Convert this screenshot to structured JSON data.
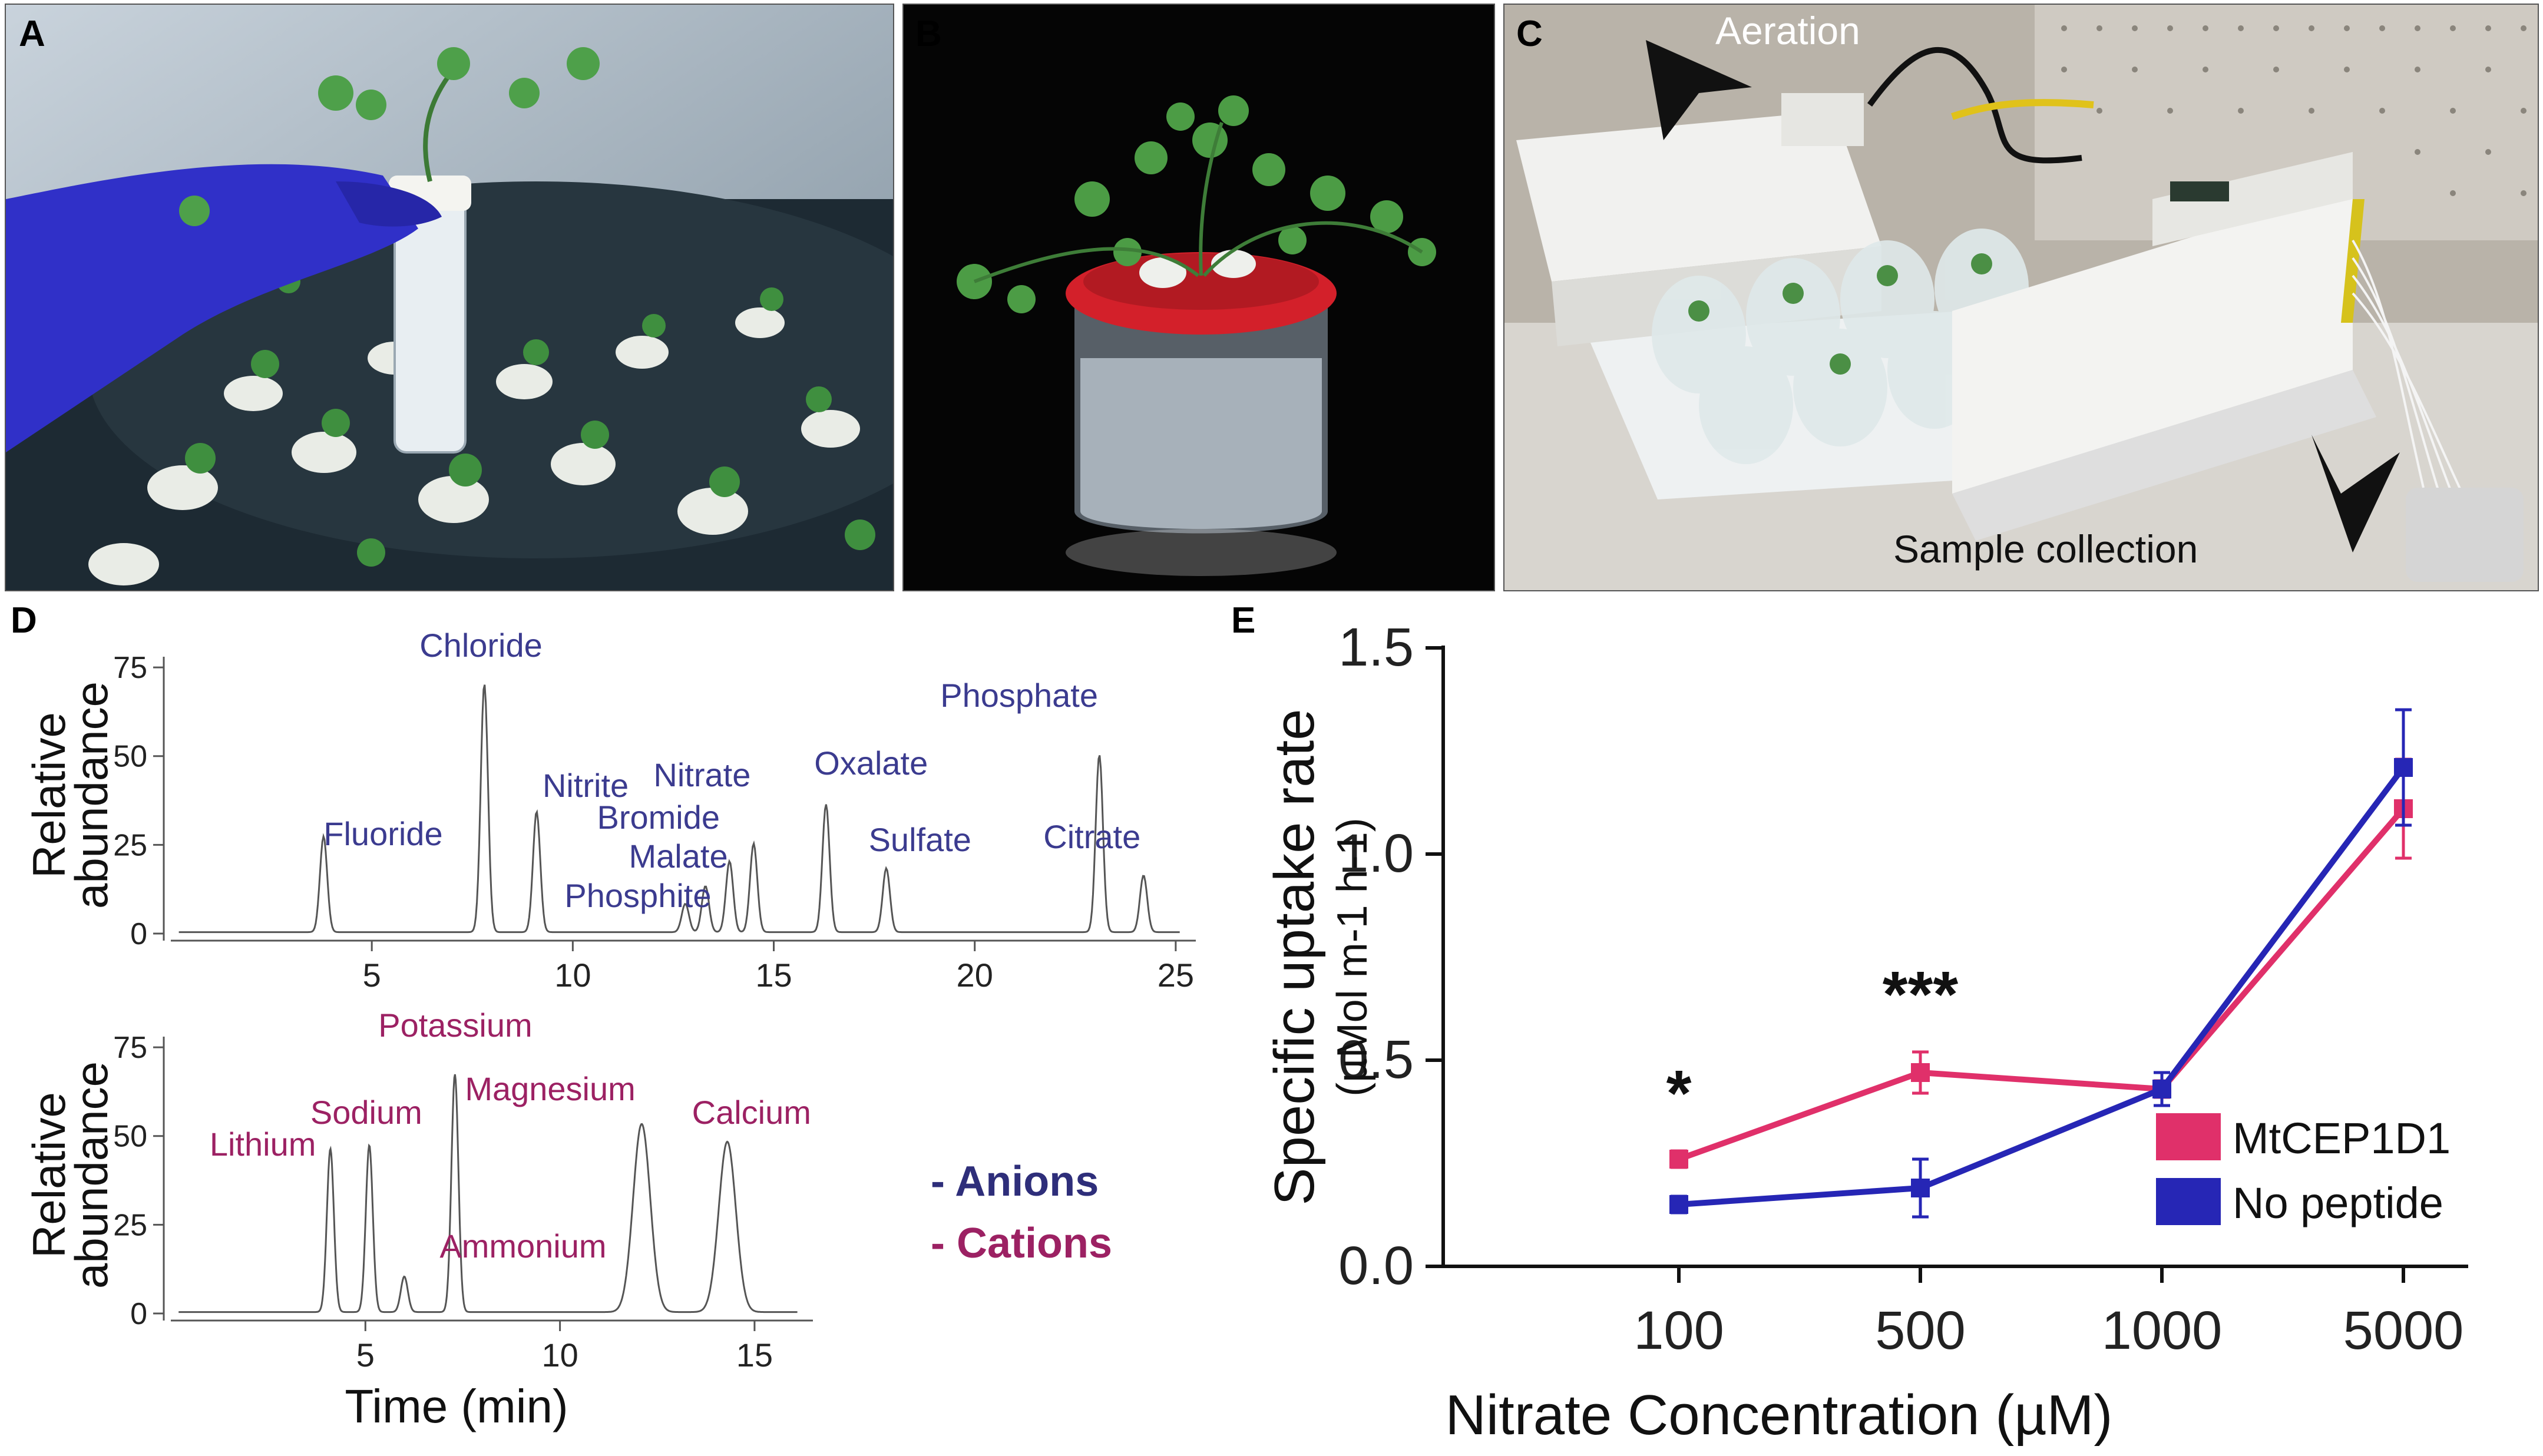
{
  "panels": {
    "A": {
      "label": "A"
    },
    "B": {
      "label": "B"
    },
    "C": {
      "label": "C",
      "annotations": {
        "aeration": "Aeration",
        "sample_collection": "Sample collection"
      }
    },
    "D": {
      "label": "D"
    },
    "E": {
      "label": "E"
    }
  },
  "chart_data": [
    {
      "id": "anions",
      "type": "line",
      "ylabel": "Relative abundance",
      "xlabel": "",
      "xlim": [
        0,
        25.5
      ],
      "ylim": [
        0,
        78
      ],
      "xticks": [
        5,
        10,
        15,
        20,
        25
      ],
      "yticks": [
        0,
        25,
        50,
        75
      ],
      "color": "#3b3b8f",
      "peaks": [
        {
          "name": "Fluoride",
          "x": 3.8,
          "y": 27
        },
        {
          "name": "Chloride",
          "x": 7.8,
          "y": 70
        },
        {
          "name": "Nitrite",
          "x": 9.1,
          "y": 34
        },
        {
          "name": "Phosphite",
          "x": 12.8,
          "y": 8
        },
        {
          "name": "Malate",
          "x": 13.3,
          "y": 13
        },
        {
          "name": "Bromide",
          "x": 13.9,
          "y": 20
        },
        {
          "name": "Nitrate",
          "x": 14.5,
          "y": 25
        },
        {
          "name": "Oxalate",
          "x": 16.3,
          "y": 36
        },
        {
          "name": "Sulfate",
          "x": 17.8,
          "y": 18
        },
        {
          "name": "Phosphate",
          "x": 23.1,
          "y": 50
        },
        {
          "name": "Citrate",
          "x": 24.2,
          "y": 16
        }
      ]
    },
    {
      "id": "cations",
      "type": "line",
      "ylabel": "Relative abundance",
      "xlabel": "Time (min)",
      "xlim": [
        0,
        16.5
      ],
      "ylim": [
        0,
        78
      ],
      "xticks": [
        5,
        10,
        15
      ],
      "yticks": [
        0,
        25,
        50,
        75
      ],
      "color": "#9c2163",
      "peaks": [
        {
          "name": "Lithium",
          "x": 4.1,
          "y": 46
        },
        {
          "name": "Sodium",
          "x": 5.1,
          "y": 47
        },
        {
          "name": "Ammonium",
          "x": 6.0,
          "y": 10
        },
        {
          "name": "Potassium",
          "x": 7.3,
          "y": 67
        },
        {
          "name": "Magnesium",
          "x": 12.1,
          "y": 53
        },
        {
          "name": "Calcium",
          "x": 14.3,
          "y": 48
        }
      ],
      "legend": [
        {
          "name": "- Anions",
          "color": "#2e2e7a"
        },
        {
          "name": "- Cations",
          "color": "#9c2163"
        }
      ]
    },
    {
      "id": "uptake",
      "type": "line",
      "xlabel": "Nitrate Concentration (µM)",
      "ylabel": "Specific uptake rate",
      "ylabel_units": "(µMol m-1 h-1)",
      "categories": [
        "100",
        "500",
        "1000",
        "5000"
      ],
      "ylim": [
        0,
        1.5
      ],
      "yticks": [
        "0.0",
        "0.5",
        "1.0",
        "1.5"
      ],
      "series": [
        {
          "name": "MtCEP1D1",
          "color": "#e0306a",
          "values": [
            0.26,
            0.47,
            0.43,
            1.11
          ],
          "errors": [
            0.02,
            0.05,
            0.02,
            0.12
          ]
        },
        {
          "name": "No peptide",
          "color": "#2626b5",
          "values": [
            0.15,
            0.19,
            0.43,
            1.21
          ],
          "errors": [
            0.02,
            0.07,
            0.04,
            0.14
          ]
        }
      ],
      "significance": [
        {
          "category": "100",
          "label": "*"
        },
        {
          "category": "500",
          "label": "***"
        }
      ],
      "legend_position": "bottom-right"
    }
  ]
}
